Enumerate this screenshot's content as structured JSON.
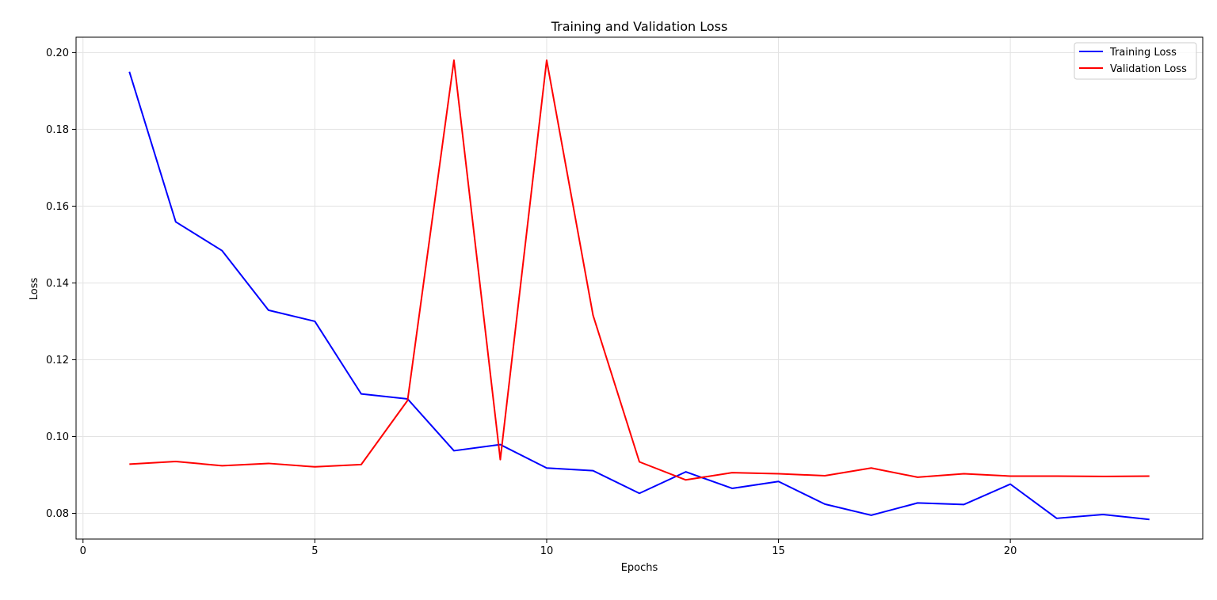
{
  "chart_data": {
    "type": "line",
    "title": "Training and Validation Loss",
    "xlabel": "Epochs",
    "ylabel": "Loss",
    "xlim": [
      -0.15,
      24.15
    ],
    "ylim": [
      0.0733,
      0.204
    ],
    "xticks": [
      0,
      5,
      10,
      15,
      20
    ],
    "yticks": [
      0.08,
      0.1,
      0.12,
      0.14,
      0.16,
      0.18,
      0.2
    ],
    "ytick_labels": [
      "0.08",
      "0.10",
      "0.12",
      "0.14",
      "0.16",
      "0.18",
      "0.20"
    ],
    "grid": true,
    "legend_position": "top-right",
    "x": [
      1,
      2,
      3,
      4,
      5,
      6,
      7,
      8,
      9,
      10,
      11,
      12,
      13,
      14,
      15,
      16,
      17,
      18,
      19,
      20,
      21,
      22,
      23
    ],
    "series": [
      {
        "name": "Training Loss",
        "color": "#0000ff",
        "values": [
          0.195,
          0.1559,
          0.1484,
          0.1329,
          0.13,
          0.1111,
          0.1098,
          0.0963,
          0.0979,
          0.0918,
          0.0911,
          0.0852,
          0.0908,
          0.0865,
          0.0883,
          0.0824,
          0.0795,
          0.0827,
          0.0823,
          0.0876,
          0.0787,
          0.0797,
          0.0784
        ]
      },
      {
        "name": "Validation Loss",
        "color": "#ff0000",
        "values": [
          0.0928,
          0.0935,
          0.0924,
          0.093,
          0.0921,
          0.0927,
          0.1094,
          0.198,
          0.094,
          0.198,
          0.1316,
          0.0934,
          0.0887,
          0.0906,
          0.0903,
          0.0898,
          0.0918,
          0.0894,
          0.0903,
          0.0897,
          0.0897,
          0.0896,
          0.0897
        ]
      }
    ]
  }
}
